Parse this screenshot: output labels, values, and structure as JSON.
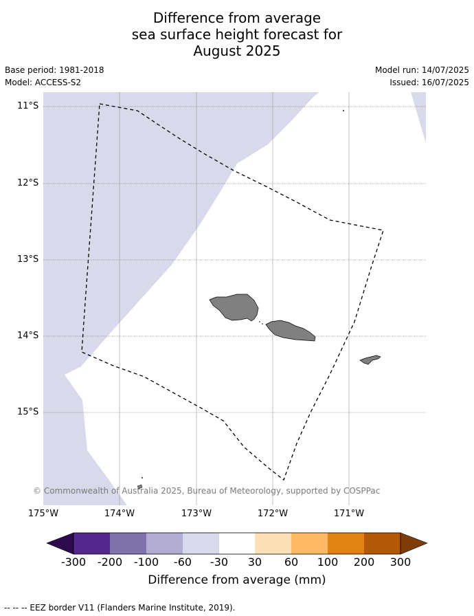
{
  "title": {
    "line1": "Difference from average",
    "line2": "sea surface height forecast for",
    "line3": "August 2025"
  },
  "meta": {
    "base_period": "Base period: 1981-2018",
    "model": "Model: ACCESS-S2",
    "model_run": "Model run: 14/07/2025",
    "issued": "Issued: 16/07/2025"
  },
  "map": {
    "lat_labels": [
      "11°S",
      "12°S",
      "13°S",
      "14°S",
      "15°S"
    ],
    "lon_labels": [
      "175°W",
      "174°W",
      "173°W",
      "172°W",
      "171°W"
    ],
    "extent": {
      "lon_min": -175,
      "lon_max": -170,
      "lat_min": -16.2,
      "lat_max": -10.8
    },
    "colors": {
      "ocean_anomaly_neg30_to_neg60": "#d8d8ea",
      "neutral": "#ffffff",
      "land": "#808080"
    },
    "copyright": "© Commonwealth of Australia 2025, Bureau of Meteorology, supported by COSPPac"
  },
  "colorbar": {
    "title": "Difference from average (mm)",
    "ticks": [
      "-300",
      "-200",
      "-100",
      "-60",
      "-30",
      "30",
      "60",
      "100",
      "200",
      "300"
    ],
    "colors": [
      "#2d0a4e",
      "#54278f",
      "#8073ac",
      "#b2abd2",
      "#d8daeb",
      "#ffffff",
      "#fee0b6",
      "#fdb863",
      "#e08214",
      "#b35806",
      "#7f3b08"
    ]
  },
  "footer": {
    "legend": "--  --  -- EEZ border V11 (Flanders Marine Institute, 2019)."
  }
}
